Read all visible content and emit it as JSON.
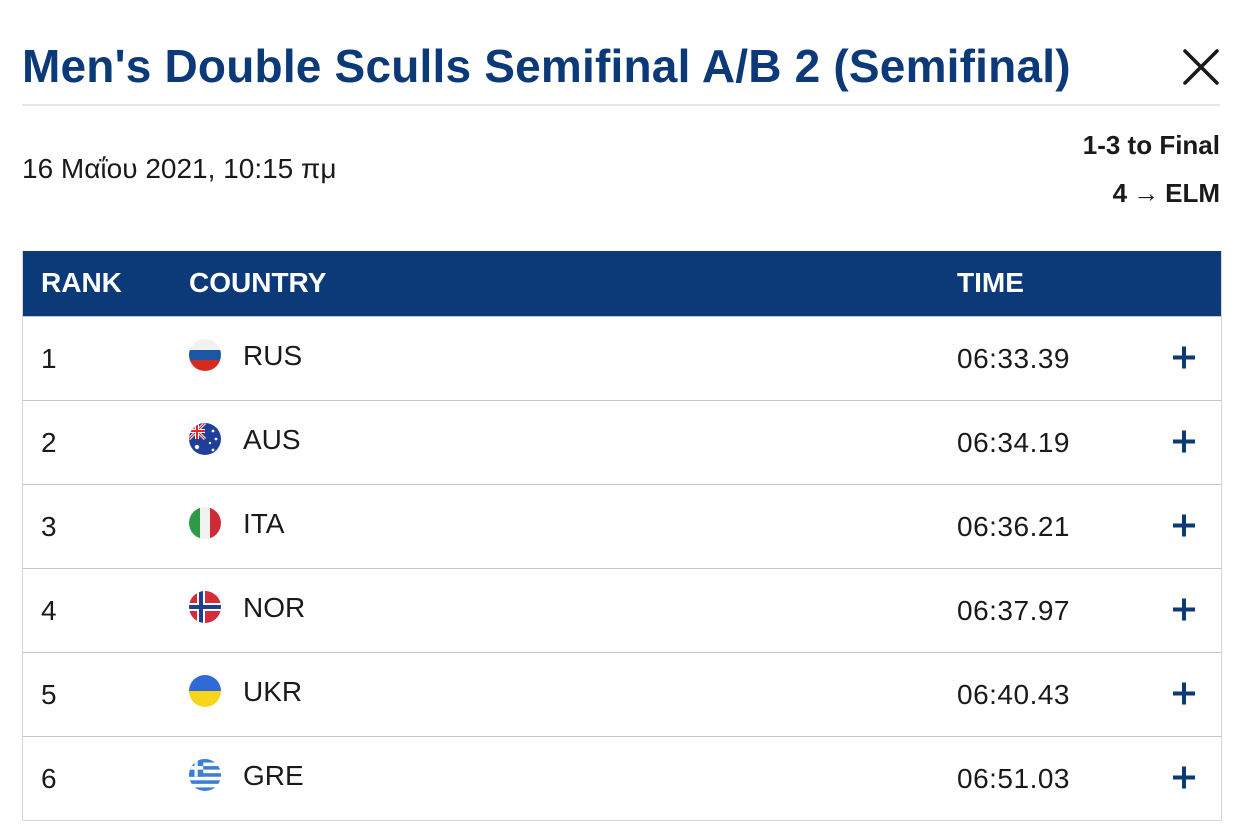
{
  "header": {
    "title": "Men's Double Sculls Semifinal A/B 2 (Semifinal)",
    "close_icon": "close-icon"
  },
  "info": {
    "date": "16 Μαΐου 2021, 10:15 πμ",
    "qualification": [
      "1-3 to Final",
      "4",
      "ELM"
    ]
  },
  "table": {
    "headers": {
      "rank": "RANK",
      "country": "COUNTRY",
      "time": "TIME"
    },
    "rows": [
      {
        "rank": "1",
        "country": "RUS",
        "flag": "russia-flag-icon",
        "time": "06:33.39"
      },
      {
        "rank": "2",
        "country": "AUS",
        "flag": "australia-flag-icon",
        "time": "06:34.19"
      },
      {
        "rank": "3",
        "country": "ITA",
        "flag": "italy-flag-icon",
        "time": "06:36.21"
      },
      {
        "rank": "4",
        "country": "NOR",
        "flag": "norway-flag-icon",
        "time": "06:37.97"
      },
      {
        "rank": "5",
        "country": "UKR",
        "flag": "ukraine-flag-icon",
        "time": "06:40.43"
      },
      {
        "rank": "6",
        "country": "GRE",
        "flag": "greece-flag-icon",
        "time": "06:51.03"
      }
    ]
  },
  "colors": {
    "brand": "#0c3a78",
    "row_divider": "#b9c6dc",
    "header_text": "#ffffff"
  }
}
